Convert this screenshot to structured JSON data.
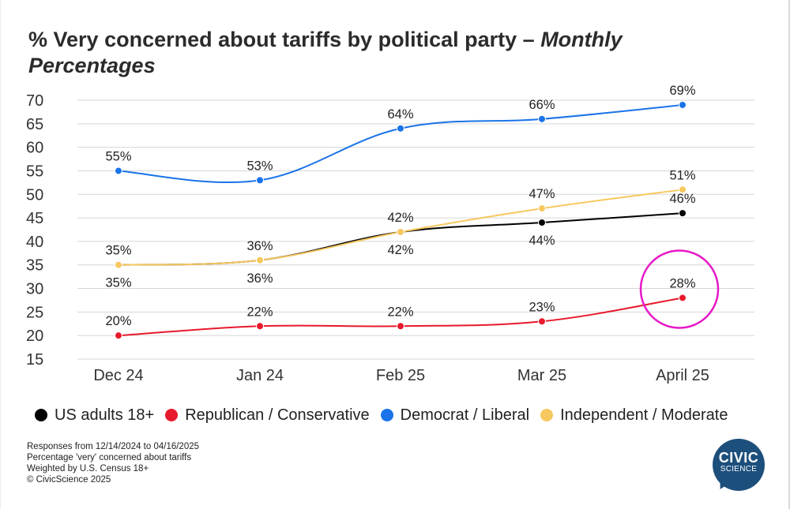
{
  "title": {
    "main": "% Very concerned about tariffs by political party – ",
    "italic": "Monthly Percentages"
  },
  "chart_data": {
    "type": "line",
    "title": "% Very concerned about tariffs by political party – Monthly Percentages",
    "xlabel": "",
    "ylabel": "",
    "categories": [
      "Dec 24",
      "Jan 24",
      "Feb 25",
      "Mar 25",
      "April 25"
    ],
    "yticks": [
      70,
      65,
      60,
      55,
      50,
      45,
      40,
      35,
      30,
      25,
      20,
      15
    ],
    "ylim": [
      15,
      70
    ],
    "grid": true,
    "series": [
      {
        "name": "US adults 18+",
        "color": "#000000",
        "values": [
          35,
          36,
          42,
          44,
          46
        ],
        "labels": [
          "35%",
          "36%",
          "42%",
          "44%",
          "46%"
        ],
        "label_side": [
          "below",
          "below",
          "below",
          "below",
          "above"
        ]
      },
      {
        "name": "Republican / Conservative",
        "color": "#e8192c",
        "values": [
          20,
          22,
          22,
          23,
          28
        ],
        "labels": [
          "20%",
          "22%",
          "22%",
          "23%",
          "28%"
        ],
        "label_side": [
          "above",
          "above",
          "above",
          "above",
          "above"
        ]
      },
      {
        "name": "Democrat / Liberal",
        "color": "#1a73e8",
        "values": [
          55,
          53,
          64,
          66,
          69
        ],
        "labels": [
          "55%",
          "53%",
          "64%",
          "66%",
          "69%"
        ],
        "label_side": [
          "above",
          "above",
          "above",
          "above",
          "above"
        ]
      },
      {
        "name": "Independent / Moderate",
        "color": "#f6c85f",
        "values": [
          35,
          36,
          42,
          47,
          51
        ],
        "labels": [
          "35%",
          "36%",
          "42%",
          "47%",
          "51%"
        ],
        "label_side": [
          "above",
          "above",
          "above",
          "above",
          "above"
        ]
      }
    ],
    "annotation": {
      "type": "circle",
      "target": "Republican / Conservative",
      "category": "April 25",
      "color": "#e619c8"
    }
  },
  "legend": [
    {
      "label": "US adults 18+",
      "color": "#000000"
    },
    {
      "label": "Republican / Conservative",
      "color": "#e8192c"
    },
    {
      "label": "Democrat / Liberal",
      "color": "#1a73e8"
    },
    {
      "label": "Independent / Moderate",
      "color": "#f6c85f"
    }
  ],
  "footnotes": [
    "Responses from 12/14/2024 to 04/16/2025",
    "Percentage 'very' concerned about tariffs",
    "Weighted by U.S. Census 18+",
    "© CivicScience 2025"
  ],
  "logo": {
    "top": "CIVIC",
    "bottom": "SCIENCE"
  }
}
